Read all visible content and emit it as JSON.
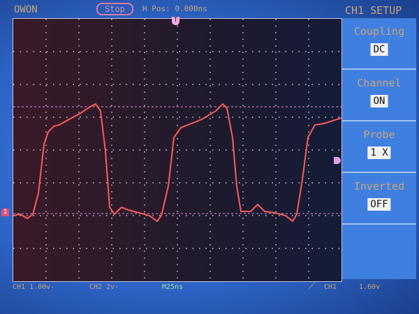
{
  "header": {
    "brand": "OWON",
    "run_state": "Stop",
    "h_pos": "H Pos: 0.000ns",
    "menu_title": "CH1 SETUP"
  },
  "menu": [
    {
      "label": "Coupling",
      "value": "DC"
    },
    {
      "label": "Channel",
      "value": "ON"
    },
    {
      "label": "Probe",
      "value": "1 X"
    },
    {
      "label": "Inverted",
      "value": "OFF"
    }
  ],
  "footer": {
    "ch1": "CH1 1.00v-",
    "ch2": "CH2 2v-",
    "timebase": "M25ns",
    "trigger_source": "CH1",
    "trigger_level": "1.60v"
  },
  "markers": {
    "trigger": "T",
    "ch1": "1"
  },
  "colors": {
    "trace": "#ff5a5a",
    "background": "#2c63c4",
    "grid": "#d8d0e0",
    "text": "#c9a57a"
  }
}
